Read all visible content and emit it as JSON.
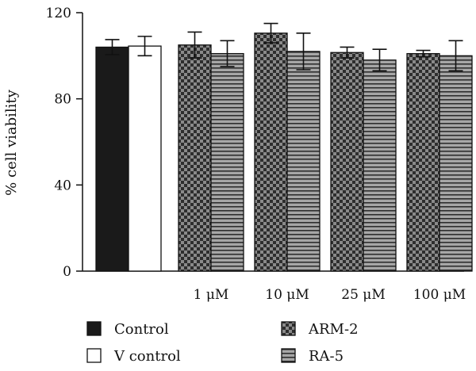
{
  "chart_data": {
    "type": "bar",
    "ylabel": "% cell viability",
    "ylim": [
      0,
      120
    ],
    "yticks": [
      0,
      40,
      80,
      120
    ],
    "grid": false,
    "legend_position": "bottom",
    "controls": [
      {
        "name": "Control",
        "value": 104,
        "error": 3.5,
        "pattern": "solid-black"
      },
      {
        "name": "V control",
        "value": 104.5,
        "error": 4.5,
        "pattern": "white"
      }
    ],
    "categories": [
      "1 μM",
      "10 μM",
      "25 μM",
      "100 μM"
    ],
    "series": [
      {
        "name": "ARM-2",
        "pattern": "checker",
        "values": [
          105,
          110.5,
          101.5,
          101
        ],
        "errors": [
          6,
          4.5,
          2.5,
          1.5
        ]
      },
      {
        "name": "RA-5",
        "pattern": "horizontal-stripes",
        "values": [
          101,
          102,
          98,
          100
        ],
        "errors": [
          6,
          8.5,
          5,
          7
        ]
      }
    ],
    "legend": [
      {
        "name": "Control",
        "pattern": "solid-black"
      },
      {
        "name": "V control",
        "pattern": "white"
      },
      {
        "name": "ARM-2",
        "pattern": "checker"
      },
      {
        "name": "RA-5",
        "pattern": "horizontal-stripes"
      }
    ]
  }
}
